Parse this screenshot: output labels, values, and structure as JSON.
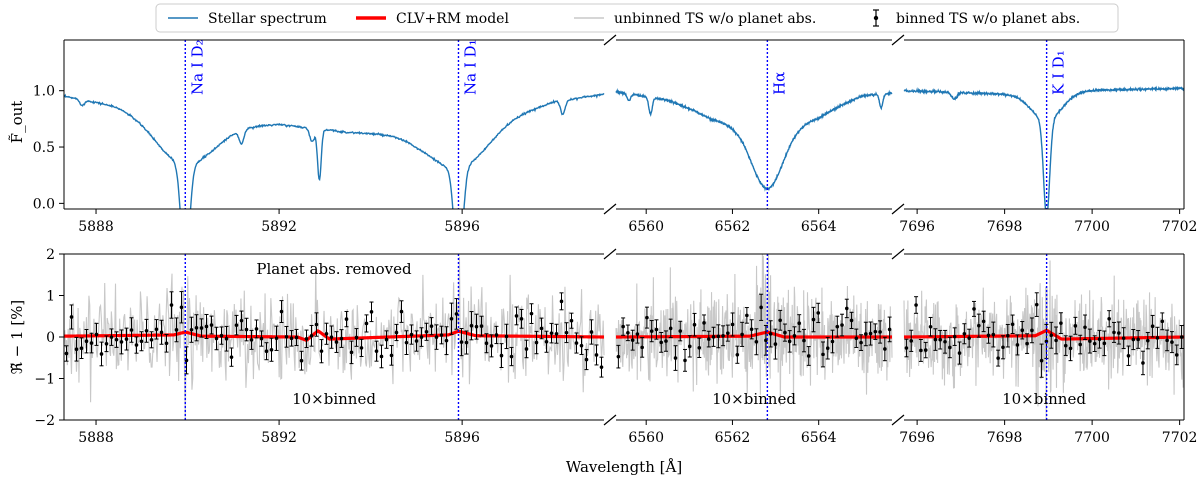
{
  "chart_data": {
    "type": "line",
    "legend": {
      "position": "top",
      "entries": [
        {
          "label": "Stellar spectrum",
          "color": "#1f77b4"
        },
        {
          "label": "CLV+RM model",
          "color": "#ff0000"
        },
        {
          "label": "unbinned TS w/o planet abs.",
          "color": "#c8c8c8"
        },
        {
          "label": "binned TS w/o planet abs.",
          "color": "#000000"
        }
      ]
    },
    "xlabel": "Wavelength [Å]",
    "segments": [
      {
        "id": "na",
        "xlim": [
          5887.3,
          5899.1
        ],
        "xticks": [
          5888,
          5892,
          5896
        ],
        "xtick_labels": [
          "5888",
          "5892",
          "5896"
        ]
      },
      {
        "id": "ha",
        "xlim": [
          6559.3,
          6565.7
        ],
        "xticks": [
          6560,
          6562,
          6564
        ],
        "xtick_labels": [
          "6560",
          "6562",
          "6564"
        ]
      },
      {
        "id": "k",
        "xlim": [
          7695.7,
          7702.1
        ],
        "xticks": [
          7696,
          7698,
          7700,
          7702
        ],
        "xtick_labels": [
          "7696",
          "7698",
          "7700",
          "7702"
        ]
      }
    ],
    "lines": [
      {
        "segment": "na",
        "x": 5889.95,
        "label": "Na I D₂"
      },
      {
        "segment": "na",
        "x": 5895.92,
        "label": "Na I D₁"
      },
      {
        "segment": "ha",
        "x": 6562.81,
        "label": "Hα"
      },
      {
        "segment": "k",
        "x": 7698.96,
        "label": "K I D₁"
      }
    ],
    "top_panel": {
      "ylabel": "F̃_out",
      "ylim": [
        -0.05,
        1.45
      ],
      "yticks": [
        0.0,
        0.5,
        1.0
      ],
      "ytick_labels": [
        "0.0",
        "0.5",
        "1.0"
      ]
    },
    "bottom_panel": {
      "ylabel": "ℜ̃ − 1 [%]",
      "ylim": [
        -2,
        2
      ],
      "yticks": [
        -2,
        -1,
        0,
        1,
        2
      ],
      "ytick_labels": [
        "−2",
        "−1",
        "0",
        "1",
        "2"
      ],
      "annotations": [
        {
          "segment": "na",
          "text": "Planet abs. removed",
          "where": "top"
        },
        {
          "segment": "na",
          "text": "10×binned",
          "where": "bottom"
        },
        {
          "segment": "ha",
          "text": "10×binned",
          "where": "bottom"
        },
        {
          "segment": "k",
          "text": "10×binned",
          "where": "bottom"
        }
      ]
    },
    "stellar_spectrum": {
      "na": {
        "continuum": [
          [
            5887.3,
            0.95
          ],
          [
            5888.5,
            0.86
          ],
          [
            5889.5,
            0.72
          ],
          [
            5890.5,
            0.68
          ],
          [
            5892.0,
            0.7
          ],
          [
            5893.5,
            0.63
          ],
          [
            5895.0,
            0.6
          ],
          [
            5896.5,
            0.7
          ],
          [
            5898.0,
            0.9
          ],
          [
            5899.1,
            0.97
          ]
        ],
        "absorption": [
          {
            "center": 5889.95,
            "depth": 0.92,
            "width": 0.09
          },
          {
            "center": 5889.95,
            "depth": 0.35,
            "width": 0.6
          },
          {
            "center": 5895.92,
            "depth": 0.92,
            "width": 0.09
          },
          {
            "center": 5895.92,
            "depth": 0.35,
            "width": 0.6
          },
          {
            "center": 5892.88,
            "depth": 0.45,
            "width": 0.04
          },
          {
            "center": 5892.72,
            "depth": 0.12,
            "width": 0.05
          },
          {
            "center": 5891.18,
            "depth": 0.12,
            "width": 0.05
          },
          {
            "center": 5898.2,
            "depth": 0.12,
            "width": 0.05
          },
          {
            "center": 5887.7,
            "depth": 0.05,
            "width": 0.05
          }
        ]
      },
      "ha": {
        "continuum": [
          [
            6559.3,
            0.99
          ],
          [
            6560.5,
            0.92
          ],
          [
            6561.5,
            0.8
          ],
          [
            6562.8,
            0.78
          ],
          [
            6564.0,
            0.82
          ],
          [
            6565.0,
            0.96
          ],
          [
            6565.7,
            0.98
          ]
        ],
        "absorption": [
          {
            "center": 6562.81,
            "depth": 0.5,
            "width": 0.35
          },
          {
            "center": 6562.81,
            "depth": 0.15,
            "width": 0.9
          },
          {
            "center": 6559.6,
            "depth": 0.06,
            "width": 0.04
          },
          {
            "center": 6560.1,
            "depth": 0.15,
            "width": 0.04
          },
          {
            "center": 6565.45,
            "depth": 0.12,
            "width": 0.04
          }
        ]
      },
      "k": {
        "continuum": [
          [
            7695.7,
            1.0
          ],
          [
            7698.0,
            0.97
          ],
          [
            7699.5,
            1.0
          ],
          [
            7702.1,
            1.02
          ]
        ],
        "absorption": [
          {
            "center": 7698.96,
            "depth": 0.85,
            "width": 0.07
          },
          {
            "center": 7698.96,
            "depth": 0.25,
            "width": 0.35
          },
          {
            "center": 7696.85,
            "depth": 0.06,
            "width": 0.06
          }
        ]
      }
    },
    "clv_rm_model": {
      "na": [
        [
          5887.3,
          0.02
        ],
        [
          5889.7,
          0.05
        ],
        [
          5889.95,
          0.12
        ],
        [
          5890.3,
          0.02
        ],
        [
          5892.4,
          0.0
        ],
        [
          5892.6,
          -0.08
        ],
        [
          5892.85,
          0.15
        ],
        [
          5893.1,
          -0.05
        ],
        [
          5895.7,
          0.05
        ],
        [
          5895.92,
          0.14
        ],
        [
          5896.3,
          0.03
        ],
        [
          5899.1,
          0.0
        ]
      ],
      "ha": [
        [
          6559.3,
          0.0
        ],
        [
          6562.4,
          0.02
        ],
        [
          6562.81,
          0.12
        ],
        [
          6563.2,
          0.0
        ],
        [
          6565.7,
          0.0
        ]
      ],
      "k": [
        [
          7695.7,
          0.0
        ],
        [
          7698.7,
          0.03
        ],
        [
          7698.96,
          0.16
        ],
        [
          7699.3,
          -0.05
        ],
        [
          7702.1,
          0.0
        ]
      ]
    },
    "binned_points_per_segment": {
      "na": 108,
      "ha": 58,
      "k": 58
    },
    "binned_scatter_percent": 0.3,
    "unbinned_scatter_percent": 0.5
  }
}
